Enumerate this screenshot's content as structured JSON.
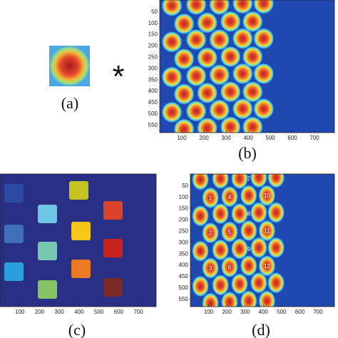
{
  "panels": {
    "a": {
      "label": "(a)"
    },
    "b": {
      "label": "(b)",
      "xticks": [
        "100",
        "200",
        "300",
        "400",
        "500",
        "600",
        "700"
      ],
      "yticks": [
        "50",
        "100",
        "150",
        "200",
        "250",
        "300",
        "350",
        "400",
        "450",
        "500",
        "550"
      ]
    },
    "c": {
      "label": "(c)",
      "xticks": [
        "100",
        "200",
        "300",
        "400",
        "500",
        "600",
        "700"
      ]
    },
    "d": {
      "label": "(d)",
      "xticks": [
        "100",
        "200",
        "300",
        "400",
        "500",
        "600",
        "700"
      ],
      "yticks": [
        "50",
        "100",
        "150",
        "200",
        "250",
        "300",
        "350",
        "400",
        "450",
        "500",
        "550"
      ],
      "peak_labels": [
        "1",
        "2",
        "3",
        "4",
        "5",
        "6",
        "7",
        "8",
        "9",
        "10",
        "11",
        "12"
      ]
    }
  },
  "operator": {
    "symbol": "*"
  },
  "colors": {
    "background": "#1f3f9a",
    "peak_core": "#c6281f",
    "peak_mid": "#f0c43a",
    "halo": "#4fd0ea"
  },
  "squares": [
    {
      "color": "#2b4aa0"
    },
    {
      "color": "#c4c31f"
    },
    {
      "color": "#6fc6e4"
    },
    {
      "color": "#d8442a"
    },
    {
      "color": "#3e6fb8"
    },
    {
      "color": "#f6c61a"
    },
    {
      "color": "#78c6b0"
    },
    {
      "color": "#c9231f"
    },
    {
      "color": "#2a9fdb"
    },
    {
      "color": "#ec7a25"
    },
    {
      "color": "#86c466"
    },
    {
      "color": "#7b2a25"
    }
  ]
}
